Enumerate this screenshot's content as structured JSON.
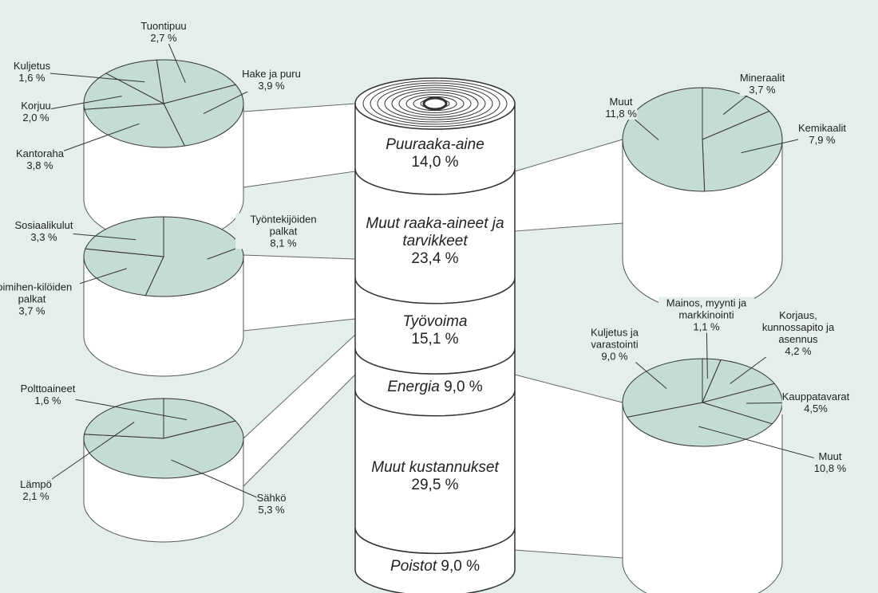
{
  "center": {
    "segments": [
      {
        "name": "Puuraaka-aine",
        "value": 14.0,
        "label": "14,0 %"
      },
      {
        "name": "Muut raaka-aineet ja tarvikkeet",
        "value": 23.4,
        "label": "23,4 %"
      },
      {
        "name": "Työvoima",
        "value": 15.1,
        "label": "15,1 %"
      },
      {
        "name": "Energia",
        "value": 9.0,
        "label": "9,0 %"
      },
      {
        "name": "Muut kustannukset",
        "value": 29.5,
        "label": "29,5 %"
      },
      {
        "name": "Poistot",
        "value": 9.0,
        "label": "9,0 %"
      }
    ]
  },
  "pies": [
    {
      "slices": [
        {
          "name": "Tuontipuu",
          "value": 2.7,
          "label": "2,7 %"
        },
        {
          "name": "Hake ja puru",
          "value": 3.9,
          "label": "3,9 %"
        },
        {
          "name": "Kantoraha",
          "value": 3.8,
          "label": "3,8 %"
        },
        {
          "name": "Korjuu",
          "value": 2.0,
          "label": "2,0 %"
        },
        {
          "name": "Kuljetus",
          "value": 1.6,
          "label": "1,6 %"
        }
      ]
    },
    {
      "slices": [
        {
          "name": "Työntekijöiden palkat",
          "value": 8.1,
          "label": "8,1 %"
        },
        {
          "name": "Toimihen-kilöiden palkat",
          "value": 3.7,
          "label": "3,7 %"
        },
        {
          "name": "Sosiaalikulut",
          "value": 3.3,
          "label": "3,3 %"
        }
      ]
    },
    {
      "slices": [
        {
          "name": "Polttoaineet",
          "value": 1.6,
          "label": "1,6 %"
        },
        {
          "name": "Sähkö",
          "value": 5.3,
          "label": "5,3 %"
        },
        {
          "name": "Lämpö",
          "value": 2.1,
          "label": "2,1 %"
        }
      ]
    },
    {
      "slices": [
        {
          "name": "Mineraalit",
          "value": 3.7,
          "label": "3,7 %"
        },
        {
          "name": "Kemikaalit",
          "value": 7.9,
          "label": "7,9 %"
        },
        {
          "name": "Muut",
          "value": 11.8,
          "label": "11,8 %"
        }
      ]
    },
    {
      "slices": [
        {
          "name": "Mainos, myynti ja markkinointi",
          "value": 1.1,
          "label": "1,1 %"
        },
        {
          "name": "Korjaus, kunnossapito ja asennus",
          "value": 4.2,
          "label": "4,2 %"
        },
        {
          "name": "Kauppatavarat",
          "value": 4.5,
          "label": "4,5%"
        },
        {
          "name": "Muut",
          "value": 10.8,
          "label": "10,8 %"
        },
        {
          "name": "Kuljetus ja varastointi",
          "value": 9.0,
          "label": "9,0 %"
        }
      ]
    }
  ]
}
